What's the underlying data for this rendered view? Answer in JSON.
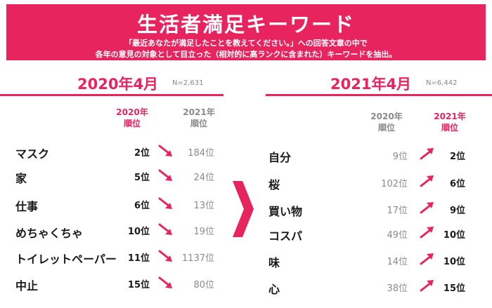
{
  "header": {
    "title": "生活者満足キーワード",
    "subtitle_line1": "「最近あなたが満足したことを教えてください。」への回答文章の中で",
    "subtitle_line2": "各年の意見の対象として目立った（相対的に高ランクに含まれた）キーワードを抽出。"
  },
  "colors": {
    "accent": "#e8245f",
    "gray_text": "#8a8a8a",
    "down_arrow": "down-right arrow (pink)",
    "up_arrow": "up-right arrow (pink)"
  },
  "chart_data": [
    {
      "type": "table",
      "title": "2020年4月",
      "note": "N=2,631",
      "columns": [
        "2020年順位",
        "2021年順位"
      ],
      "col_head_2020": [
        "2020年",
        "順位"
      ],
      "col_head_2021": [
        "2021年",
        "順位"
      ],
      "rows": [
        {
          "keyword": "マスク",
          "rank_2020": "2位",
          "rank_2021": "184位",
          "rank_2020_value": 2,
          "rank_2021_value": 184,
          "trend": "down"
        },
        {
          "keyword": "家",
          "rank_2020": "5位",
          "rank_2021": "24位",
          "rank_2020_value": 5,
          "rank_2021_value": 24,
          "trend": "down"
        },
        {
          "keyword": "仕事",
          "rank_2020": "6位",
          "rank_2021": "13位",
          "rank_2020_value": 6,
          "rank_2021_value": 13,
          "trend": "down"
        },
        {
          "keyword": "めちゃくちゃ",
          "rank_2020": "10位",
          "rank_2021": "19位",
          "rank_2020_value": 10,
          "rank_2021_value": 19,
          "trend": "down"
        },
        {
          "keyword": "トイレットペーパー",
          "rank_2020": "11位",
          "rank_2021": "1137位",
          "rank_2020_value": 11,
          "rank_2021_value": 1137,
          "trend": "down"
        },
        {
          "keyword": "中止",
          "rank_2020": "15位",
          "rank_2021": "80位",
          "rank_2020_value": 15,
          "rank_2021_value": 80,
          "trend": "down"
        }
      ]
    },
    {
      "type": "table",
      "title": "2021年4月",
      "note": "N=6,442",
      "columns": [
        "2020年順位",
        "2021年順位"
      ],
      "col_head_2020": [
        "2020年",
        "順位"
      ],
      "col_head_2021": [
        "2021年",
        "順位"
      ],
      "rows": [
        {
          "keyword": "自分",
          "rank_2020": "9位",
          "rank_2021": "2位",
          "rank_2020_value": 9,
          "rank_2021_value": 2,
          "trend": "up"
        },
        {
          "keyword": "桜",
          "rank_2020": "102位",
          "rank_2021": "6位",
          "rank_2020_value": 102,
          "rank_2021_value": 6,
          "trend": "up"
        },
        {
          "keyword": "買い物",
          "rank_2020": "17位",
          "rank_2021": "9位",
          "rank_2020_value": 17,
          "rank_2021_value": 9,
          "trend": "up"
        },
        {
          "keyword": "コスパ",
          "rank_2020": "49位",
          "rank_2021": "10位",
          "rank_2020_value": 49,
          "rank_2021_value": 10,
          "trend": "up"
        },
        {
          "keyword": "味",
          "rank_2020": "14位",
          "rank_2021": "10位",
          "rank_2020_value": 14,
          "rank_2021_value": 10,
          "trend": "up"
        },
        {
          "keyword": "心",
          "rank_2020": "38位",
          "rank_2021": "15位",
          "rank_2020_value": 38,
          "rank_2021_value": 15,
          "trend": "up"
        }
      ]
    }
  ]
}
